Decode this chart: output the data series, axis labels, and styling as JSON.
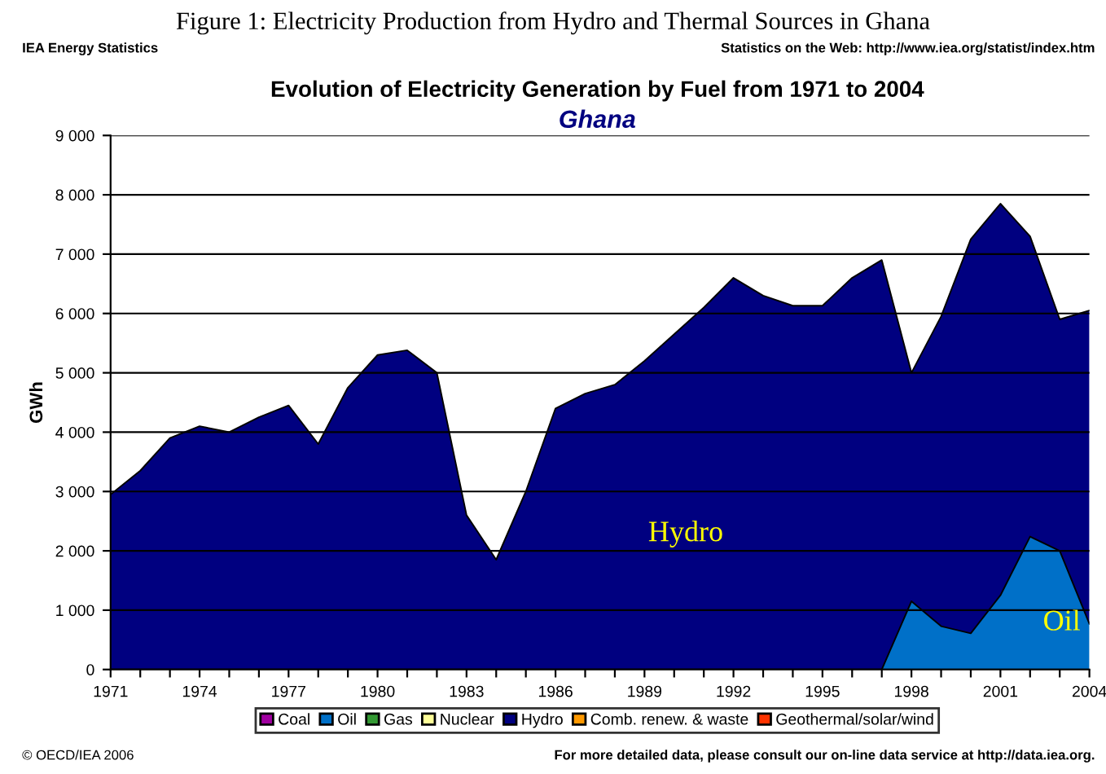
{
  "chart_data": {
    "type": "area",
    "stacked": true,
    "title": "Evolution of Electricity Generation by Fuel from 1971 to 2004",
    "subtitle": "Ghana",
    "ylabel": "GWh",
    "x": [
      1971,
      1972,
      1973,
      1974,
      1975,
      1976,
      1977,
      1978,
      1979,
      1980,
      1981,
      1982,
      1983,
      1984,
      1985,
      1986,
      1987,
      1988,
      1989,
      1990,
      1991,
      1992,
      1993,
      1994,
      1995,
      1996,
      1997,
      1998,
      1999,
      2000,
      2001,
      2002,
      2003,
      2004
    ],
    "series": [
      {
        "name": "Coal",
        "color": "#a000a0",
        "values": [
          null,
          null,
          null,
          null,
          null,
          null,
          null,
          null,
          null,
          null,
          null,
          null,
          null,
          null,
          null,
          null,
          null,
          null,
          null,
          null,
          null,
          null,
          null,
          null,
          null,
          null,
          null,
          null,
          null,
          null,
          null,
          null,
          null,
          null
        ]
      },
      {
        "name": "Oil",
        "color": "#0070c8",
        "values": [
          0,
          0,
          0,
          0,
          0,
          0,
          0,
          0,
          0,
          0,
          0,
          0,
          0,
          0,
          0,
          0,
          0,
          0,
          0,
          0,
          0,
          0,
          0,
          0,
          0,
          0,
          0,
          1150,
          730,
          610,
          1250,
          2240,
          2000,
          770
        ]
      },
      {
        "name": "Gas",
        "color": "#339933",
        "values": [
          null,
          null,
          null,
          null,
          null,
          null,
          null,
          null,
          null,
          null,
          null,
          null,
          null,
          null,
          null,
          null,
          null,
          null,
          null,
          null,
          null,
          null,
          null,
          null,
          null,
          null,
          null,
          null,
          null,
          null,
          null,
          null,
          null,
          null
        ]
      },
      {
        "name": "Nuclear",
        "color": "#ffff99",
        "values": [
          null,
          null,
          null,
          null,
          null,
          null,
          null,
          null,
          null,
          null,
          null,
          null,
          null,
          null,
          null,
          null,
          null,
          null,
          null,
          null,
          null,
          null,
          null,
          null,
          null,
          null,
          null,
          null,
          null,
          null,
          null,
          null,
          null,
          null
        ]
      },
      {
        "name": "Hydro",
        "color": "#000080",
        "values": [
          2950,
          3350,
          3900,
          4100,
          4000,
          4250,
          4450,
          3800,
          4750,
          5300,
          5380,
          5000,
          2600,
          1850,
          3000,
          4400,
          4650,
          4800,
          5200,
          5650,
          6100,
          6600,
          6300,
          6130,
          6130,
          6600,
          6900,
          3850,
          5220,
          6640,
          6600,
          5060,
          3900,
          5280
        ]
      },
      {
        "name": "Comb. renew. & waste",
        "color": "#ff9900",
        "values": [
          null,
          null,
          null,
          null,
          null,
          null,
          null,
          null,
          null,
          null,
          null,
          null,
          null,
          null,
          null,
          null,
          null,
          null,
          null,
          null,
          null,
          null,
          null,
          null,
          null,
          null,
          null,
          null,
          null,
          null,
          null,
          null,
          null,
          null
        ]
      },
      {
        "name": "Geothermal/solar/wind",
        "color": "#ff3300",
        "values": [
          null,
          null,
          null,
          null,
          null,
          null,
          null,
          null,
          null,
          null,
          null,
          null,
          null,
          null,
          null,
          null,
          null,
          null,
          null,
          null,
          null,
          null,
          null,
          null,
          null,
          null,
          null,
          null,
          null,
          null,
          null,
          null,
          null,
          null
        ]
      }
    ],
    "xlim": [
      1971,
      2004
    ],
    "xticks": [
      1971,
      {
        "value": 1972,
        "label": null
      },
      {
        "value": 1973,
        "label": null
      },
      1974,
      {
        "value": 1975,
        "label": null
      },
      {
        "value": 1976,
        "label": null
      },
      1977,
      {
        "value": 1978,
        "label": null
      },
      {
        "value": 1979,
        "label": null
      },
      1980,
      {
        "value": 1981,
        "label": null
      },
      {
        "value": 1982,
        "label": null
      },
      1983,
      {
        "value": 1984,
        "label": null
      },
      {
        "value": 1985,
        "label": null
      },
      1986,
      {
        "value": 1987,
        "label": null
      },
      {
        "value": 1988,
        "label": null
      },
      1989,
      {
        "value": 1990,
        "label": null
      },
      {
        "value": 1991,
        "label": null
      },
      1992,
      {
        "value": 1993,
        "label": null
      },
      {
        "value": 1994,
        "label": null
      },
      1995,
      {
        "value": 1996,
        "label": null
      },
      {
        "value": 1997,
        "label": null
      },
      1998,
      {
        "value": 1999,
        "label": null
      },
      {
        "value": 2000,
        "label": null
      },
      2001,
      {
        "value": 2002,
        "label": null
      },
      {
        "value": 2003,
        "label": null
      },
      2004
    ],
    "ylim": [
      0,
      9000
    ],
    "yticks": [
      0,
      {
        "value": 1000,
        "label": "1 000"
      },
      {
        "value": 2000,
        "label": "2 000"
      },
      {
        "value": 3000,
        "label": "3 000"
      },
      {
        "value": 4000,
        "label": "4 000"
      },
      {
        "value": 5000,
        "label": "5 000"
      },
      {
        "value": 6000,
        "label": "6 000"
      },
      {
        "value": 7000,
        "label": "7 000"
      },
      {
        "value": 8000,
        "label": "8 000"
      },
      {
        "value": 9000,
        "label": "9 000"
      }
    ],
    "grid": "y",
    "legend": "bottom",
    "annotations": [
      "Hydro",
      "Oil",
      "Figure 1: Electricity Production from Hydro and Thermal Sources in Ghana",
      "IEA Energy Statistics",
      "Statistics on the Web: http://www.iea.org/statist/index.htm",
      "© OECD/IEA 2006",
      "For more detailed data, please consult our on-line data service at http://data.iea.org."
    ]
  }
}
